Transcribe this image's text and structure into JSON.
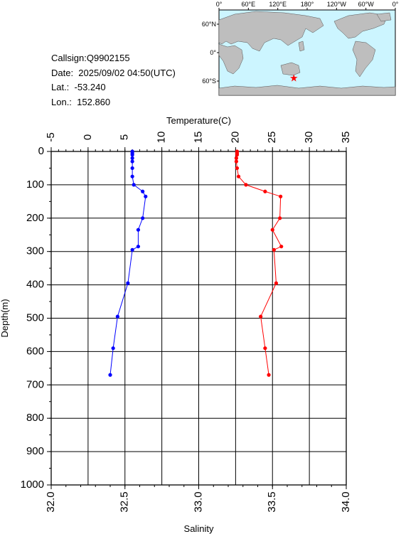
{
  "info": {
    "callsign": "Callsign:Q9902155",
    "date": "Date:  2025/09/02 04:50(UTC)",
    "lat": "Lat.:  -53.240",
    "lon": "Lon.:  152.860"
  },
  "map": {
    "top_labels": [
      "0°",
      "60°E",
      "120°E",
      "180°",
      "120°W",
      "60°W",
      "0°"
    ],
    "left_labels": [
      "60°N",
      "0°",
      "60°S"
    ],
    "marker": {
      "lat": -53.24,
      "lon": 152.86
    },
    "colors": {
      "ocean": "#ccf5ff",
      "land": "#bebebe",
      "marker": "#ff0000"
    }
  },
  "chart_data": {
    "type": "line",
    "temperature_axis": {
      "label": "Temperature(C)",
      "range": [
        -5,
        35
      ],
      "ticks": [
        "-5",
        "0",
        "5",
        "10",
        "15",
        "20",
        "25",
        "30",
        "35"
      ]
    },
    "salinity_axis": {
      "label": "Salinity",
      "range": [
        32.0,
        34.0
      ],
      "ticks": [
        "32.0",
        "32.5",
        "33.0",
        "33.5",
        "34.0"
      ]
    },
    "depth_axis": {
      "label": "Depth(m)",
      "range": [
        0,
        1000
      ],
      "ticks": [
        "0",
        "100",
        "200",
        "300",
        "400",
        "500",
        "600",
        "700",
        "800",
        "900",
        "1000"
      ]
    },
    "grid": true,
    "series": [
      {
        "name": "Salinity",
        "axis": "salinity",
        "color": "#0000ff",
        "depth": [
          0,
          5,
          10,
          20,
          30,
          50,
          75,
          100,
          120,
          135,
          200,
          235,
          285,
          295,
          395,
          495,
          590,
          670
        ],
        "values": [
          32.55,
          32.55,
          32.55,
          32.55,
          32.55,
          32.55,
          32.55,
          32.56,
          32.62,
          32.64,
          32.62,
          32.59,
          32.59,
          32.55,
          32.52,
          32.45,
          32.42,
          32.4
        ]
      },
      {
        "name": "Temperature",
        "axis": "temperature",
        "color": "#ff0000",
        "depth": [
          0,
          5,
          10,
          20,
          30,
          50,
          75,
          100,
          120,
          135,
          200,
          235,
          285,
          295,
          395,
          495,
          590,
          670
        ],
        "values": [
          20.2,
          20.2,
          20.2,
          20.1,
          20.1,
          20.2,
          20.4,
          21.4,
          24.0,
          26.1,
          26.0,
          25.0,
          26.2,
          25.2,
          25.5,
          23.4,
          24.0,
          24.5
        ]
      }
    ]
  }
}
